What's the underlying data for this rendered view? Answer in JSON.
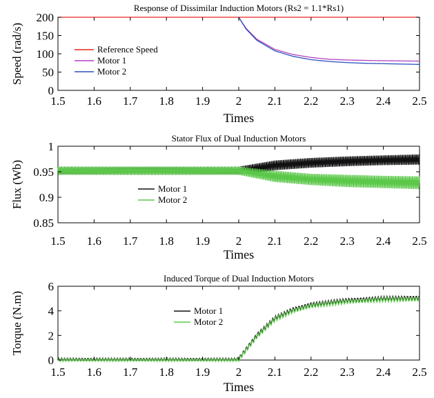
{
  "chart_data": [
    {
      "type": "line",
      "title": "Response of Dissimilar Induction Motors  (Rs2 = 1.1*Rs1)",
      "xlabel": "Times",
      "ylabel": "Speed (rad/s)",
      "xlim": [
        1.5,
        2.5
      ],
      "ylim": [
        0,
        200
      ],
      "x_ticks": [
        "1.5",
        "1.6",
        "1.7",
        "1.8",
        "1.9",
        "2",
        "2.1",
        "2.2",
        "2.3",
        "2.4",
        "2.5"
      ],
      "y_ticks": [
        "0",
        "50",
        "100",
        "150",
        "200"
      ],
      "legend_position": "left",
      "series": [
        {
          "name": "Reference Speed",
          "color": "#e8231f",
          "x": [
            1.5,
            2.5
          ],
          "y": [
            200,
            200
          ]
        },
        {
          "name": "Motor 1",
          "color": "#b040c0",
          "x": [
            2.0,
            2.02,
            2.05,
            2.1,
            2.15,
            2.2,
            2.25,
            2.3,
            2.35,
            2.4,
            2.5
          ],
          "y": [
            200,
            170,
            140,
            112,
            98,
            90,
            85,
            83,
            82,
            81,
            80
          ]
        },
        {
          "name": "Motor 2",
          "color": "#2a52be",
          "x": [
            2.0,
            2.02,
            2.05,
            2.1,
            2.15,
            2.2,
            2.25,
            2.3,
            2.35,
            2.4,
            2.5
          ],
          "y": [
            200,
            168,
            137,
            108,
            93,
            84,
            79,
            76,
            74,
            73,
            71
          ]
        }
      ]
    },
    {
      "type": "line",
      "title": "Stator Flux of Dual Induction Motors",
      "xlabel": "Times",
      "ylabel": "Flux  (Wb)",
      "xlim": [
        1.5,
        2.5
      ],
      "ylim": [
        0.85,
        1
      ],
      "x_ticks": [
        "1.5",
        "1.6",
        "1.7",
        "1.8",
        "1.9",
        "2",
        "2.1",
        "2.2",
        "2.3",
        "2.4",
        "2.5"
      ],
      "y_ticks": [
        "0.85",
        "0.9",
        "0.95",
        "1"
      ],
      "legend_position": "left",
      "series": [
        {
          "name": "Motor 1",
          "color": "#111111",
          "x": [
            1.5,
            2.0,
            2.1,
            2.2,
            2.3,
            2.4,
            2.5
          ],
          "y_upper": [
            0.96,
            0.96,
            0.972,
            0.977,
            0.98,
            0.982,
            0.984
          ],
          "y_lower": [
            0.944,
            0.944,
            0.953,
            0.958,
            0.961,
            0.963,
            0.964
          ]
        },
        {
          "name": "Motor 2",
          "color": "#5cc84a",
          "x": [
            1.5,
            2.0,
            2.1,
            2.2,
            2.3,
            2.4,
            2.5
          ],
          "y_upper": [
            0.96,
            0.96,
            0.952,
            0.946,
            0.944,
            0.942,
            0.941
          ],
          "y_lower": [
            0.944,
            0.944,
            0.93,
            0.924,
            0.92,
            0.918,
            0.916
          ]
        }
      ]
    },
    {
      "type": "line",
      "title": "Induced Torque of Dual Induction Motors",
      "xlabel": "Times",
      "ylabel": "Torque (N.m)",
      "xlim": [
        1.5,
        2.5
      ],
      "ylim": [
        0,
        6
      ],
      "x_ticks": [
        "1.5",
        "1.6",
        "1.7",
        "1.8",
        "1.9",
        "2",
        "2.1",
        "2.2",
        "2.3",
        "2.4",
        "2.5"
      ],
      "y_ticks": [
        "0",
        "2",
        "4",
        "6"
      ],
      "legend_position": "top-left",
      "series": [
        {
          "name": "Motor 1",
          "color": "#111111",
          "x": [
            1.5,
            1.99,
            2.0,
            2.05,
            2.1,
            2.15,
            2.2,
            2.3,
            2.4,
            2.5
          ],
          "y": [
            0.05,
            0.05,
            0.1,
            2.0,
            3.4,
            4.1,
            4.5,
            4.85,
            5.0,
            5.05
          ]
        },
        {
          "name": "Motor 2",
          "color": "#5cc84a",
          "x": [
            1.5,
            1.99,
            2.0,
            2.05,
            2.1,
            2.15,
            2.2,
            2.3,
            2.4,
            2.5
          ],
          "y": [
            0.0,
            0.0,
            0.05,
            1.9,
            3.3,
            4.0,
            4.4,
            4.75,
            4.9,
            4.95
          ]
        }
      ]
    }
  ]
}
